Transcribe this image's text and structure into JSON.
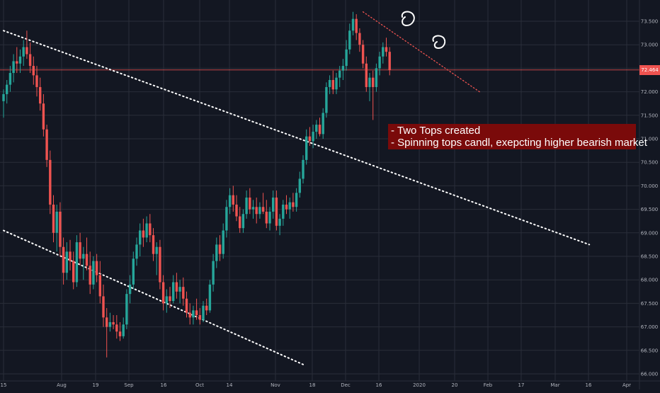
{
  "chart_data": {
    "type": "candlestick",
    "title": "",
    "ylim": [
      65.95,
      73.85
    ],
    "y_ticks": [
      "66.000",
      "66.500",
      "67.000",
      "67.500",
      "68.000",
      "68.500",
      "69.000",
      "69.500",
      "70.000",
      "70.500",
      "71.000",
      "71.500",
      "72.000",
      "72.500",
      "73.000",
      "73.500"
    ],
    "x_ticks": [
      "15",
      "Aug",
      "19",
      "Sep",
      "16",
      "Oct",
      "14",
      "Nov",
      "18",
      "Dec",
      "16",
      "2020",
      "20",
      "Feb",
      "17",
      "Mar",
      "16",
      "Apr"
    ],
    "last_price": "72.464",
    "trendlines": [
      {
        "name": "upper-channel-line",
        "from": {
          "bar": 0,
          "price": 73.3
        },
        "to": {
          "bar": 176,
          "price": 68.75
        }
      },
      {
        "name": "lower-channel-line",
        "from": {
          "bar": 0,
          "price": 69.05
        },
        "to": {
          "bar": 90,
          "price": 66.2
        }
      },
      {
        "name": "tops-resistance-line",
        "from": {
          "bar": 108,
          "price": 73.7
        },
        "to": {
          "bar": 143,
          "price": 72.0
        }
      }
    ],
    "candles": [
      {
        "o": 71.8,
        "h": 72.05,
        "l": 71.45,
        "c": 71.95
      },
      {
        "o": 71.95,
        "h": 72.25,
        "l": 71.75,
        "c": 72.15
      },
      {
        "o": 72.15,
        "h": 72.55,
        "l": 72.0,
        "c": 72.4
      },
      {
        "o": 72.4,
        "h": 72.8,
        "l": 72.2,
        "c": 72.65
      },
      {
        "o": 72.65,
        "h": 72.95,
        "l": 72.4,
        "c": 72.6
      },
      {
        "o": 72.6,
        "h": 72.9,
        "l": 72.4,
        "c": 72.75
      },
      {
        "o": 72.75,
        "h": 73.1,
        "l": 72.55,
        "c": 72.95
      },
      {
        "o": 72.95,
        "h": 73.3,
        "l": 72.7,
        "c": 72.8
      },
      {
        "o": 72.8,
        "h": 73.05,
        "l": 72.4,
        "c": 72.55
      },
      {
        "o": 72.55,
        "h": 72.75,
        "l": 72.15,
        "c": 72.35
      },
      {
        "o": 72.35,
        "h": 72.55,
        "l": 71.9,
        "c": 72.1
      },
      {
        "o": 72.1,
        "h": 72.3,
        "l": 71.6,
        "c": 71.75
      },
      {
        "o": 71.75,
        "h": 71.95,
        "l": 71.05,
        "c": 71.2
      },
      {
        "o": 71.2,
        "h": 71.3,
        "l": 70.4,
        "c": 70.55
      },
      {
        "o": 70.55,
        "h": 70.75,
        "l": 69.4,
        "c": 69.6
      },
      {
        "o": 69.6,
        "h": 69.8,
        "l": 68.8,
        "c": 69.0
      },
      {
        "o": 69.0,
        "h": 69.6,
        "l": 68.6,
        "c": 69.45
      },
      {
        "o": 69.45,
        "h": 69.65,
        "l": 68.5,
        "c": 68.7
      },
      {
        "o": 68.7,
        "h": 68.9,
        "l": 67.9,
        "c": 68.15
      },
      {
        "o": 68.15,
        "h": 68.8,
        "l": 68.0,
        "c": 68.6
      },
      {
        "o": 68.6,
        "h": 68.85,
        "l": 68.2,
        "c": 68.4
      },
      {
        "o": 68.4,
        "h": 68.6,
        "l": 67.8,
        "c": 67.95
      },
      {
        "o": 67.95,
        "h": 68.95,
        "l": 67.85,
        "c": 68.8
      },
      {
        "o": 68.8,
        "h": 69.0,
        "l": 68.3,
        "c": 68.45
      },
      {
        "o": 68.45,
        "h": 68.7,
        "l": 68.0,
        "c": 68.55
      },
      {
        "o": 68.55,
        "h": 68.9,
        "l": 68.2,
        "c": 68.3
      },
      {
        "o": 68.3,
        "h": 68.6,
        "l": 67.7,
        "c": 67.9
      },
      {
        "o": 67.9,
        "h": 68.5,
        "l": 67.8,
        "c": 68.4
      },
      {
        "o": 68.4,
        "h": 68.55,
        "l": 67.95,
        "c": 68.1
      },
      {
        "o": 68.1,
        "h": 68.4,
        "l": 67.5,
        "c": 67.65
      },
      {
        "o": 67.65,
        "h": 67.9,
        "l": 67.0,
        "c": 67.2
      },
      {
        "o": 67.2,
        "h": 67.4,
        "l": 66.35,
        "c": 67.0
      },
      {
        "o": 67.0,
        "h": 67.3,
        "l": 66.9,
        "c": 67.1
      },
      {
        "o": 67.1,
        "h": 67.25,
        "l": 66.95,
        "c": 67.05
      },
      {
        "o": 67.05,
        "h": 67.25,
        "l": 66.75,
        "c": 66.9
      },
      {
        "o": 66.9,
        "h": 67.1,
        "l": 66.7,
        "c": 66.8
      },
      {
        "o": 66.8,
        "h": 67.2,
        "l": 66.75,
        "c": 67.05
      },
      {
        "o": 67.05,
        "h": 67.8,
        "l": 66.95,
        "c": 67.7
      },
      {
        "o": 67.7,
        "h": 68.1,
        "l": 67.5,
        "c": 67.9
      },
      {
        "o": 67.9,
        "h": 68.6,
        "l": 67.8,
        "c": 68.45
      },
      {
        "o": 68.45,
        "h": 68.9,
        "l": 68.3,
        "c": 68.75
      },
      {
        "o": 68.75,
        "h": 69.2,
        "l": 68.5,
        "c": 69.05
      },
      {
        "o": 69.05,
        "h": 69.3,
        "l": 68.7,
        "c": 68.9
      },
      {
        "o": 68.9,
        "h": 69.35,
        "l": 68.8,
        "c": 69.2
      },
      {
        "o": 69.2,
        "h": 69.4,
        "l": 68.8,
        "c": 68.95
      },
      {
        "o": 68.95,
        "h": 69.1,
        "l": 68.4,
        "c": 68.55
      },
      {
        "o": 68.55,
        "h": 68.8,
        "l": 68.1,
        "c": 68.7
      },
      {
        "o": 68.7,
        "h": 68.85,
        "l": 67.8,
        "c": 67.95
      },
      {
        "o": 67.95,
        "h": 68.1,
        "l": 67.35,
        "c": 67.5
      },
      {
        "o": 67.5,
        "h": 67.8,
        "l": 67.3,
        "c": 67.65
      },
      {
        "o": 67.65,
        "h": 67.85,
        "l": 67.4,
        "c": 67.55
      },
      {
        "o": 67.55,
        "h": 68.1,
        "l": 67.5,
        "c": 67.95
      },
      {
        "o": 67.95,
        "h": 68.15,
        "l": 67.6,
        "c": 67.75
      },
      {
        "o": 67.75,
        "h": 68.0,
        "l": 67.5,
        "c": 67.85
      },
      {
        "o": 67.85,
        "h": 68.05,
        "l": 67.45,
        "c": 67.6
      },
      {
        "o": 67.6,
        "h": 67.75,
        "l": 67.2,
        "c": 67.3
      },
      {
        "o": 67.3,
        "h": 67.5,
        "l": 67.05,
        "c": 67.2
      },
      {
        "o": 67.2,
        "h": 67.45,
        "l": 67.05,
        "c": 67.35
      },
      {
        "o": 67.35,
        "h": 67.6,
        "l": 67.15,
        "c": 67.25
      },
      {
        "o": 67.25,
        "h": 67.4,
        "l": 67.05,
        "c": 67.15
      },
      {
        "o": 67.15,
        "h": 67.55,
        "l": 67.1,
        "c": 67.45
      },
      {
        "o": 67.45,
        "h": 67.6,
        "l": 67.25,
        "c": 67.35
      },
      {
        "o": 67.35,
        "h": 68.0,
        "l": 67.3,
        "c": 67.9
      },
      {
        "o": 67.9,
        "h": 68.55,
        "l": 67.75,
        "c": 68.4
      },
      {
        "o": 68.4,
        "h": 68.9,
        "l": 68.25,
        "c": 68.75
      },
      {
        "o": 68.75,
        "h": 68.95,
        "l": 68.4,
        "c": 68.55
      },
      {
        "o": 68.55,
        "h": 69.2,
        "l": 68.45,
        "c": 69.05
      },
      {
        "o": 69.05,
        "h": 69.7,
        "l": 68.9,
        "c": 69.55
      },
      {
        "o": 69.55,
        "h": 69.95,
        "l": 69.4,
        "c": 69.8
      },
      {
        "o": 69.8,
        "h": 70.0,
        "l": 69.45,
        "c": 69.6
      },
      {
        "o": 69.6,
        "h": 69.8,
        "l": 69.25,
        "c": 69.35
      },
      {
        "o": 69.35,
        "h": 69.55,
        "l": 69.0,
        "c": 69.1
      },
      {
        "o": 69.1,
        "h": 69.5,
        "l": 69.0,
        "c": 69.4
      },
      {
        "o": 69.4,
        "h": 69.9,
        "l": 69.3,
        "c": 69.75
      },
      {
        "o": 69.75,
        "h": 69.95,
        "l": 69.4,
        "c": 69.5
      },
      {
        "o": 69.5,
        "h": 69.7,
        "l": 69.3,
        "c": 69.55
      },
      {
        "o": 69.55,
        "h": 69.75,
        "l": 69.2,
        "c": 69.4
      },
      {
        "o": 69.4,
        "h": 69.65,
        "l": 69.3,
        "c": 69.55
      },
      {
        "o": 69.55,
        "h": 69.85,
        "l": 69.4,
        "c": 69.45
      },
      {
        "o": 69.45,
        "h": 69.7,
        "l": 69.1,
        "c": 69.2
      },
      {
        "o": 69.2,
        "h": 69.55,
        "l": 69.05,
        "c": 69.45
      },
      {
        "o": 69.45,
        "h": 69.9,
        "l": 69.3,
        "c": 69.75
      },
      {
        "o": 69.75,
        "h": 69.9,
        "l": 69.05,
        "c": 69.15
      },
      {
        "o": 69.15,
        "h": 69.4,
        "l": 68.95,
        "c": 69.3
      },
      {
        "o": 69.3,
        "h": 69.7,
        "l": 69.15,
        "c": 69.6
      },
      {
        "o": 69.6,
        "h": 69.8,
        "l": 69.4,
        "c": 69.5
      },
      {
        "o": 69.5,
        "h": 69.75,
        "l": 69.3,
        "c": 69.65
      },
      {
        "o": 69.65,
        "h": 69.85,
        "l": 69.45,
        "c": 69.55
      },
      {
        "o": 69.55,
        "h": 69.95,
        "l": 69.45,
        "c": 69.85
      },
      {
        "o": 69.85,
        "h": 70.3,
        "l": 69.75,
        "c": 70.15
      },
      {
        "o": 70.15,
        "h": 70.65,
        "l": 70.05,
        "c": 70.55
      },
      {
        "o": 70.55,
        "h": 71.2,
        "l": 70.45,
        "c": 71.05
      },
      {
        "o": 71.05,
        "h": 71.25,
        "l": 70.85,
        "c": 70.95
      },
      {
        "o": 70.95,
        "h": 71.3,
        "l": 70.8,
        "c": 71.15
      },
      {
        "o": 71.15,
        "h": 71.4,
        "l": 71.0,
        "c": 71.3
      },
      {
        "o": 71.3,
        "h": 71.45,
        "l": 71.05,
        "c": 71.1
      },
      {
        "o": 71.1,
        "h": 71.65,
        "l": 71.0,
        "c": 71.55
      },
      {
        "o": 71.55,
        "h": 72.2,
        "l": 71.45,
        "c": 72.1
      },
      {
        "o": 72.1,
        "h": 72.35,
        "l": 71.95,
        "c": 72.25
      },
      {
        "o": 72.25,
        "h": 72.45,
        "l": 71.95,
        "c": 72.05
      },
      {
        "o": 72.05,
        "h": 72.4,
        "l": 71.95,
        "c": 72.3
      },
      {
        "o": 72.3,
        "h": 72.55,
        "l": 72.1,
        "c": 72.45
      },
      {
        "o": 72.45,
        "h": 72.7,
        "l": 72.25,
        "c": 72.55
      },
      {
        "o": 72.55,
        "h": 73.1,
        "l": 72.45,
        "c": 72.9
      },
      {
        "o": 72.9,
        "h": 73.45,
        "l": 72.8,
        "c": 73.3
      },
      {
        "o": 73.3,
        "h": 73.7,
        "l": 73.2,
        "c": 73.55
      },
      {
        "o": 73.55,
        "h": 73.65,
        "l": 73.1,
        "c": 73.25
      },
      {
        "o": 73.25,
        "h": 73.35,
        "l": 72.85,
        "c": 73.0
      },
      {
        "o": 73.0,
        "h": 73.1,
        "l": 72.5,
        "c": 72.6
      },
      {
        "o": 72.6,
        "h": 72.75,
        "l": 72.0,
        "c": 72.1
      },
      {
        "o": 72.1,
        "h": 72.4,
        "l": 71.8,
        "c": 72.3
      },
      {
        "o": 72.3,
        "h": 72.45,
        "l": 71.4,
        "c": 72.1
      },
      {
        "o": 72.1,
        "h": 72.6,
        "l": 72.0,
        "c": 72.5
      },
      {
        "o": 72.5,
        "h": 72.85,
        "l": 72.35,
        "c": 72.75
      },
      {
        "o": 72.75,
        "h": 73.05,
        "l": 72.6,
        "c": 72.95
      },
      {
        "o": 72.95,
        "h": 73.15,
        "l": 72.75,
        "c": 72.85
      },
      {
        "o": 72.85,
        "h": 72.95,
        "l": 72.35,
        "c": 72.46
      }
    ]
  },
  "annotation": {
    "line1": "- Two Tops created",
    "line2": "- Spinning tops candl, exepcting higher bearish market"
  },
  "colors": {
    "background": "#131722",
    "grid": "#2a2e39",
    "up": "#26a69a",
    "down": "#ef5350",
    "axis_text": "#b2b5be",
    "trendline": "#ffffff",
    "resistance": "#ef5350",
    "annotation_bg": "#7a0a0a"
  }
}
